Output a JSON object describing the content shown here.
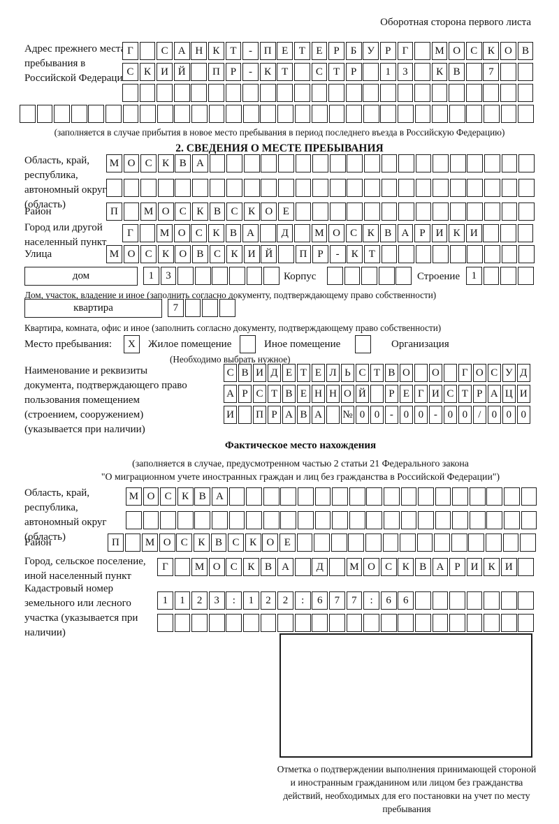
{
  "page": {
    "header_note": "Оборотная сторона первого листа"
  },
  "prev_address": {
    "label": "Адрес прежнего места пребывания в Российской Федерации",
    "rows": [
      {
        "chars": "Г САНКТ-ПЕТЕРБУРГ МОСКОВ",
        "count": 24
      },
      {
        "chars": "СКИЙ ПР-КТ СТР 13 КВ 7",
        "count": 24
      },
      {
        "chars": "",
        "count": 24
      }
    ],
    "full_row": {
      "chars": "",
      "count": 30
    },
    "note": "(заполняется в случае прибытия в новое место пребывания в период последнего въезда в Российскую Федерацию)"
  },
  "section2": {
    "title": "2. СВЕДЕНИЯ О МЕСТЕ ПРЕБЫВАНИЯ",
    "region": {
      "label": "Область, край, республика, автономный округ (область)",
      "rows": [
        {
          "chars": "МОСКВА",
          "count": 25
        },
        {
          "chars": "",
          "count": 25
        }
      ]
    },
    "district": {
      "label": "Район",
      "row": {
        "chars": "П МОСКВСКОЕ",
        "count": 25
      }
    },
    "city": {
      "label": "Город или другой населенный пункт",
      "row": {
        "chars": "Г МОСКВА Д МОСКВАРИКИ",
        "count": 24
      }
    },
    "street": {
      "label": "Улица",
      "row": {
        "chars": "МОСКОВСКИЙ ПР-КТ",
        "count": 25
      }
    },
    "house": {
      "box_label": "дом",
      "cells": {
        "chars": "13",
        "count": 8
      },
      "korpus_label": "Корпус",
      "korpus_cells": {
        "chars": "",
        "count": 5
      },
      "stroenie_label": "Строение",
      "stroenie_cells": {
        "chars": "1",
        "count": 4
      },
      "note": "Дом, участок, владение и иное (заполнить согласно документу, подтверждающему право собственности)"
    },
    "flat": {
      "box_label": "квартира",
      "cells": {
        "chars": "7",
        "count": 4
      },
      "note": "Квартира, комната, офис и иное (заполнить согласно документу, подтверждающему право собственности)"
    },
    "stay": {
      "label": "Место пребывания:",
      "mark1": {
        "chars": "X",
        "count": 1
      },
      "opt1": "Жилое помещение",
      "mark2": {
        "chars": "",
        "count": 1
      },
      "opt2": "Иное помещение",
      "mark3": {
        "chars": "",
        "count": 1
      },
      "opt3": "Организация",
      "note": "(Необходимо выбрать нужное)"
    },
    "document": {
      "label": "Наименование и реквизиты документа, подтверждающего право пользования помещением (строением, сооружением) (указывается при наличии)",
      "rows": [
        {
          "chars": "СВИДЕТЕЛЬСТВО О ГОСУД",
          "count": 21
        },
        {
          "chars": "АРСТВЕННОЙ РЕГИСТРАЦИ",
          "count": 21
        },
        {
          "chars": "И ПРАВА №00-00-00/000",
          "count": 21
        }
      ]
    }
  },
  "fact_location": {
    "title": "Фактическое место нахождения",
    "note1": "(заполняется в случае, предусмотренном частью 2 статьи 21 Федерального закона",
    "note2": "\"О миграционном учете иностранных граждан и лиц без гражданства в Российской Федерации\")",
    "region": {
      "label": "Область, край, республика, автономный округ (область)",
      "rows": [
        {
          "chars": "МОСКВА",
          "count": 24
        },
        {
          "chars": "",
          "count": 24
        }
      ]
    },
    "district": {
      "label": "Район",
      "row": {
        "chars": "П МОСКВСКОЕ",
        "count": 25
      }
    },
    "city": {
      "label": "Город, сельское поселение, иной населенный пункт",
      "row": {
        "chars": "Г МОСКВА Д МОСКВАРИКИ",
        "count": 22
      }
    },
    "cadastre": {
      "label": "Кадастровый номер земельного или лесного участка (указывается при наличии)",
      "rows": [
        {
          "chars": "1123:122:677:66",
          "count": 22
        },
        {
          "chars": "",
          "count": 22
        }
      ]
    },
    "stamp_note": "Отметка о подтверждении выполнения принимающей стороной и иностранным гражданином или лицом без гражданства действий, необходимых для его постановки на учет по месту пребывания"
  }
}
